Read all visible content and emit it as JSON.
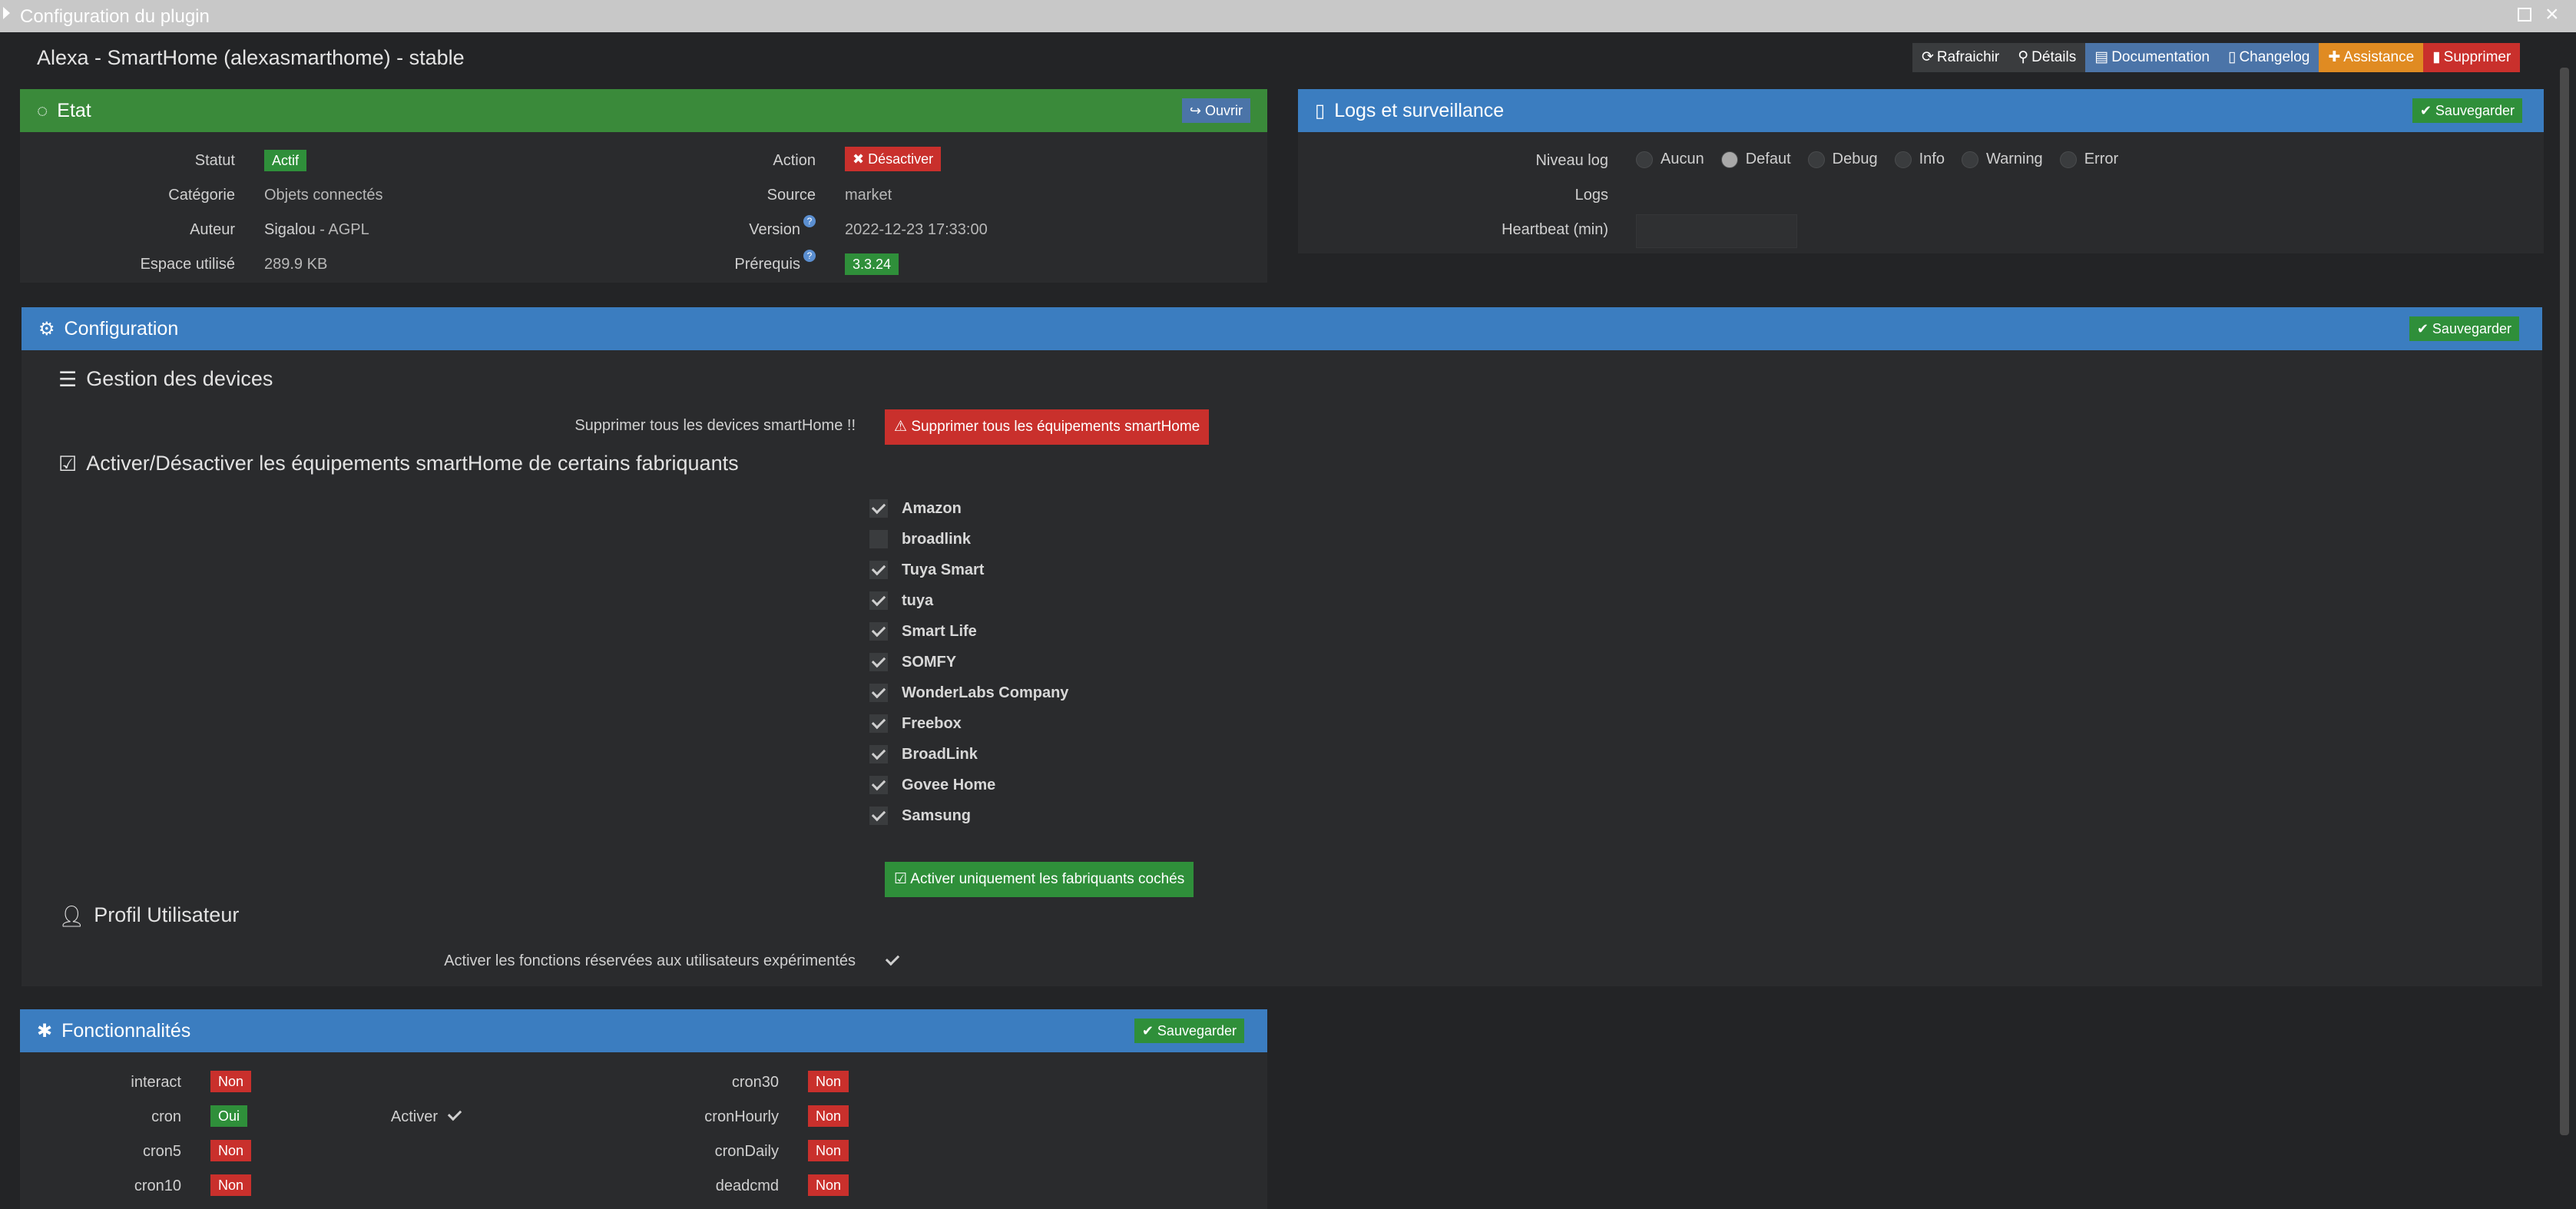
{
  "window": {
    "title": "Configuration du plugin"
  },
  "plugin": {
    "title": "Alexa - SmartHome (alexasmarthome) - stable"
  },
  "toolbar": {
    "refresh": "Rafraichir",
    "details": "Détails",
    "documentation": "Documentation",
    "changelog": "Changelog",
    "assistance": "Assistance",
    "delete": "Supprimer"
  },
  "etat": {
    "title": "Etat",
    "open_button": "Ouvrir",
    "statut_label": "Statut",
    "statut_value": "Actif",
    "categorie_label": "Catégorie",
    "categorie_value": "Objets connectés",
    "auteur_label": "Auteur",
    "auteur_name": "Sigalou",
    "auteur_license": " - AGPL",
    "espace_label": "Espace utilisé",
    "espace_value": "289.9 KB",
    "action_label": "Action",
    "action_button": "Désactiver",
    "source_label": "Source",
    "source_value": "market",
    "version_label": "Version",
    "version_value": "2022-12-23 17:33:00",
    "prerequis_label": "Prérequis",
    "prerequis_value": "3.3.24"
  },
  "logs": {
    "title": "Logs et surveillance",
    "save_button": "Sauvegarder",
    "niveau_label": "Niveau log",
    "levels": [
      "Aucun",
      "Defaut",
      "Debug",
      "Info",
      "Warning",
      "Error"
    ],
    "selected_level": "Defaut",
    "logs_label": "Logs",
    "heartbeat_label": "Heartbeat (min)",
    "heartbeat_value": ""
  },
  "configuration": {
    "title": "Configuration",
    "save_button": "Sauvegarder",
    "devices_title": "Gestion des devices",
    "delete_all_label": "Supprimer tous les devices smartHome !!",
    "delete_all_button": "Supprimer tous les équipements smartHome",
    "manufacturers_title": "Activer/Désactiver les équipements smartHome de certains fabriquants",
    "manufacturers": [
      {
        "name": "Amazon",
        "checked": true
      },
      {
        "name": "broadlink",
        "checked": false
      },
      {
        "name": "Tuya Smart",
        "checked": true
      },
      {
        "name": "tuya",
        "checked": true
      },
      {
        "name": "Smart Life",
        "checked": true
      },
      {
        "name": "SOMFY",
        "checked": true
      },
      {
        "name": "WonderLabs Company",
        "checked": true
      },
      {
        "name": "Freebox",
        "checked": true
      },
      {
        "name": "BroadLink",
        "checked": true
      },
      {
        "name": "Govee Home",
        "checked": true
      },
      {
        "name": "Samsung",
        "checked": true
      }
    ],
    "activate_checked_button": "Activer uniquement les fabriquants cochés",
    "profile_title": "Profil Utilisateur",
    "expert_label": "Activer les fonctions réservées aux utilisateurs expérimentés",
    "expert_checked": true
  },
  "fonctionnalites": {
    "title": "Fonctionnalités",
    "save_button": "Sauvegarder",
    "interact_label": "interact",
    "interact_value": "Non",
    "cron_label": "cron",
    "cron_value": "Oui",
    "activer_label": "Activer",
    "activer_checked": true,
    "cron5_label": "cron5",
    "cron5_value": "Non",
    "cron10_label": "cron10",
    "cron10_value": "Non",
    "cron30_label": "cron30",
    "cron30_value": "Non",
    "cronHourly_label": "cronHourly",
    "cronHourly_value": "Non",
    "cronDaily_label": "cronDaily",
    "cronDaily_value": "Non",
    "deadcmd_label": "deadcmd",
    "deadcmd_value": "Non"
  },
  "colors": {
    "green": "#2f8f3a",
    "blue": "#3b7dc0",
    "red": "#c9302c",
    "orange": "#e08b22",
    "background": "#232426"
  },
  "icons": [
    "refresh-icon",
    "search-icon",
    "book-icon",
    "file-icon",
    "ambulance-icon",
    "trash-icon",
    "circle-notch-icon",
    "file-text-icon",
    "cogs-icon",
    "list-icon",
    "check-square-icon",
    "user-icon",
    "puzzle-icon",
    "check-circle-icon",
    "share-icon",
    "warning-icon",
    "times-icon"
  ]
}
